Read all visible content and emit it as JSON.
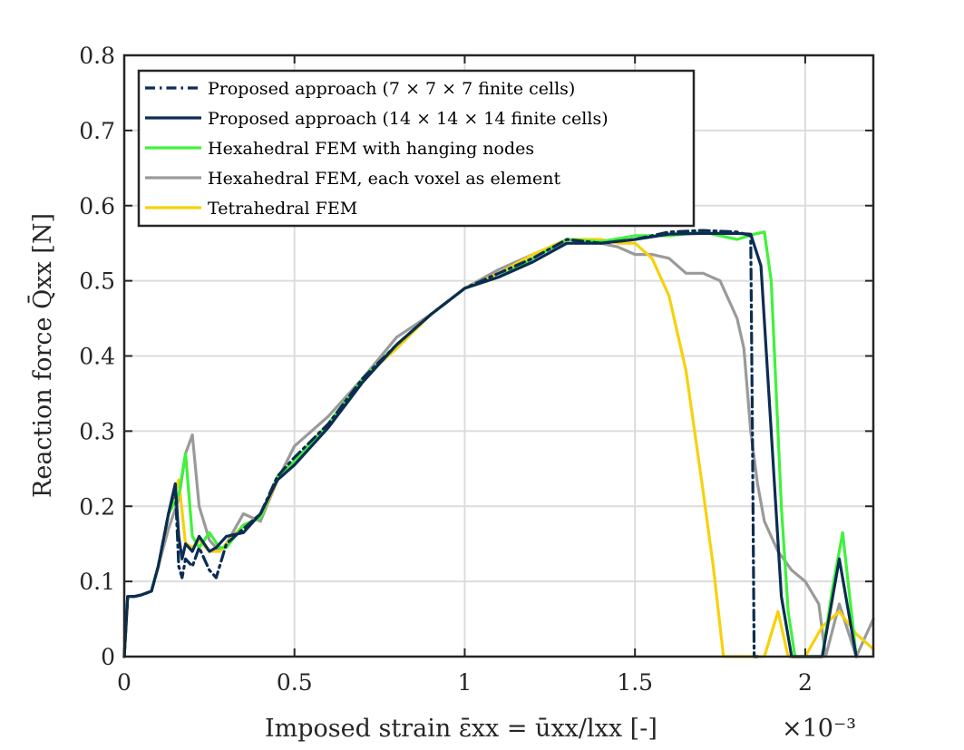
{
  "chart_data": {
    "type": "line",
    "xlabel": "Imposed strain ε̄xx = ūxx/lxx [-]",
    "ylabel": "Reaction force Q̄xx [N]",
    "x_exponent_label": "×10⁻³",
    "xlim": [
      0,
      2.2
    ],
    "ylim": [
      0,
      0.8
    ],
    "x_ticks": [
      0,
      0.5,
      1,
      1.5,
      2
    ],
    "x_tick_labels": [
      "0",
      "0.5",
      "1",
      "1.5",
      "2"
    ],
    "y_ticks": [
      0,
      0.1,
      0.2,
      0.3,
      0.4,
      0.5,
      0.6,
      0.7,
      0.8
    ],
    "y_tick_labels": [
      "0",
      "0.1",
      "0.2",
      "0.3",
      "0.4",
      "0.5",
      "0.6",
      "0.7",
      "0.8"
    ],
    "grid": true,
    "legend_position": "top-left",
    "series": [
      {
        "name": "Proposed approach (7 × 7 × 7 finite cells)",
        "color": "#0b2d52",
        "dash": "dashdot",
        "x": [
          0,
          0.01,
          0.03,
          0.05,
          0.08,
          0.1,
          0.13,
          0.15,
          0.16,
          0.17,
          0.18,
          0.2,
          0.22,
          0.25,
          0.27,
          0.3,
          0.35,
          0.4,
          0.45,
          0.5,
          0.6,
          0.7,
          0.8,
          0.9,
          1.0,
          1.1,
          1.2,
          1.3,
          1.4,
          1.5,
          1.6,
          1.7,
          1.8,
          1.84,
          1.845,
          1.85,
          1.86
        ],
        "y": [
          0,
          0.08,
          0.08,
          0.082,
          0.087,
          0.12,
          0.19,
          0.225,
          0.12,
          0.105,
          0.13,
          0.12,
          0.145,
          0.115,
          0.105,
          0.15,
          0.17,
          0.19,
          0.24,
          0.265,
          0.31,
          0.37,
          0.415,
          0.455,
          0.49,
          0.51,
          0.53,
          0.555,
          0.55,
          0.555,
          0.565,
          0.567,
          0.565,
          0.56,
          0.3,
          0,
          0
        ]
      },
      {
        "name": "Proposed approach (14 × 14 × 14 finite cells)",
        "color": "#0b2d52",
        "dash": "solid",
        "x": [
          0,
          0.01,
          0.03,
          0.05,
          0.08,
          0.1,
          0.13,
          0.15,
          0.16,
          0.17,
          0.18,
          0.2,
          0.22,
          0.25,
          0.27,
          0.3,
          0.35,
          0.4,
          0.45,
          0.5,
          0.6,
          0.7,
          0.8,
          0.9,
          1.0,
          1.1,
          1.2,
          1.3,
          1.4,
          1.5,
          1.6,
          1.7,
          1.8,
          1.84,
          1.87,
          1.9,
          1.93,
          1.96,
          2.0,
          2.05,
          2.1,
          2.15
        ],
        "y": [
          0,
          0.08,
          0.08,
          0.082,
          0.087,
          0.12,
          0.19,
          0.23,
          0.16,
          0.13,
          0.15,
          0.14,
          0.16,
          0.14,
          0.145,
          0.16,
          0.165,
          0.19,
          0.235,
          0.255,
          0.305,
          0.365,
          0.415,
          0.455,
          0.49,
          0.505,
          0.525,
          0.55,
          0.55,
          0.555,
          0.562,
          0.563,
          0.563,
          0.562,
          0.52,
          0.3,
          0.08,
          0,
          0,
          0,
          0.13,
          0
        ]
      },
      {
        "name": "Hexahedral FEM with hanging nodes",
        "color": "#3ff23a",
        "dash": "solid",
        "x": [
          0,
          0.01,
          0.03,
          0.05,
          0.08,
          0.1,
          0.13,
          0.16,
          0.18,
          0.2,
          0.22,
          0.25,
          0.28,
          0.3,
          0.35,
          0.4,
          0.45,
          0.5,
          0.6,
          0.7,
          0.8,
          0.9,
          1.0,
          1.1,
          1.2,
          1.3,
          1.4,
          1.5,
          1.6,
          1.7,
          1.8,
          1.85,
          1.88,
          1.9,
          1.93,
          1.95,
          1.97,
          2.05,
          2.08,
          2.11,
          2.15
        ],
        "y": [
          0,
          0.08,
          0.08,
          0.082,
          0.087,
          0.12,
          0.19,
          0.215,
          0.27,
          0.16,
          0.145,
          0.165,
          0.145,
          0.145,
          0.175,
          0.185,
          0.24,
          0.26,
          0.31,
          0.37,
          0.415,
          0.455,
          0.49,
          0.505,
          0.53,
          0.555,
          0.552,
          0.56,
          0.56,
          0.565,
          0.555,
          0.562,
          0.565,
          0.5,
          0.2,
          0.06,
          0,
          0,
          0.09,
          0.165,
          0
        ]
      },
      {
        "name": "Hexahedral FEM, each voxel as element",
        "color": "#9a9a9a",
        "dash": "solid",
        "x": [
          0,
          0.01,
          0.03,
          0.05,
          0.08,
          0.1,
          0.13,
          0.16,
          0.18,
          0.2,
          0.22,
          0.25,
          0.28,
          0.3,
          0.35,
          0.4,
          0.45,
          0.5,
          0.6,
          0.7,
          0.8,
          0.9,
          1.0,
          1.1,
          1.2,
          1.3,
          1.4,
          1.45,
          1.5,
          1.55,
          1.6,
          1.65,
          1.7,
          1.75,
          1.8,
          1.82,
          1.84,
          1.86,
          1.88,
          1.92,
          1.96,
          2.0,
          2.04,
          2.06,
          2.1,
          2.15,
          2.2
        ],
        "y": [
          0,
          0.08,
          0.08,
          0.082,
          0.087,
          0.12,
          0.17,
          0.21,
          0.27,
          0.295,
          0.2,
          0.155,
          0.14,
          0.15,
          0.19,
          0.18,
          0.235,
          0.28,
          0.32,
          0.37,
          0.425,
          0.455,
          0.49,
          0.515,
          0.535,
          0.55,
          0.55,
          0.545,
          0.535,
          0.535,
          0.53,
          0.51,
          0.51,
          0.5,
          0.45,
          0.41,
          0.3,
          0.23,
          0.18,
          0.14,
          0.115,
          0.1,
          0.07,
          0,
          0.07,
          0,
          0.05
        ]
      },
      {
        "name": "Tetrahedral FEM",
        "color": "#f7d10b",
        "dash": "solid",
        "x": [
          0,
          0.01,
          0.03,
          0.05,
          0.08,
          0.1,
          0.13,
          0.16,
          0.18,
          0.2,
          0.22,
          0.25,
          0.28,
          0.3,
          0.35,
          0.4,
          0.45,
          0.5,
          0.6,
          0.7,
          0.8,
          0.9,
          1.0,
          1.1,
          1.2,
          1.3,
          1.4,
          1.45,
          1.5,
          1.55,
          1.6,
          1.65,
          1.7,
          1.73,
          1.76,
          1.8,
          1.85,
          1.88,
          1.92,
          1.95,
          2.0,
          2.05,
          2.1,
          2.15,
          2.2
        ],
        "y": [
          0,
          0.08,
          0.08,
          0.082,
          0.087,
          0.12,
          0.19,
          0.235,
          0.15,
          0.145,
          0.155,
          0.14,
          0.14,
          0.15,
          0.175,
          0.185,
          0.235,
          0.26,
          0.31,
          0.37,
          0.41,
          0.455,
          0.49,
          0.51,
          0.535,
          0.555,
          0.555,
          0.55,
          0.55,
          0.53,
          0.48,
          0.38,
          0.22,
          0.12,
          0,
          0,
          0,
          0,
          0.06,
          0,
          0,
          0.04,
          0.06,
          0.03,
          0.01
        ]
      }
    ]
  }
}
